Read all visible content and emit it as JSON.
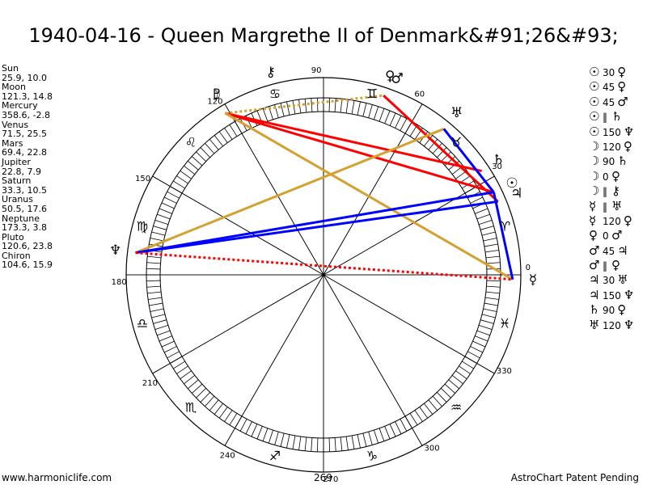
{
  "title": "1940-04-16 - Queen Margrethe II of Denmark&#91;26&#93;",
  "footer": {
    "left": "www.harmoniclife.com",
    "right": "AstroChart Patent Pending",
    "bottom_degree": "269"
  },
  "planets": [
    {
      "name": "Sun",
      "position": "25.9, 10.0"
    },
    {
      "name": "Moon",
      "position": "121.3, 14.8"
    },
    {
      "name": "Mercury",
      "position": "358.6, -2.8"
    },
    {
      "name": "Venus",
      "position": "71.5, 25.5"
    },
    {
      "name": "Mars",
      "position": "69.4, 22.8"
    },
    {
      "name": "Jupiter",
      "position": "22.8, 7.9"
    },
    {
      "name": "Saturn",
      "position": "33.3, 10.5"
    },
    {
      "name": "Uranus",
      "position": "50.5, 17.6"
    },
    {
      "name": "Neptune",
      "position": "173.3, 3.8"
    },
    {
      "name": "Pluto",
      "position": "120.6, 23.8"
    },
    {
      "name": "Chiron",
      "position": "104.6, 15.9"
    }
  ],
  "aspects": [
    {
      "p1": "☉",
      "aspect": "30",
      "p2": "♀"
    },
    {
      "p1": "☉",
      "aspect": "45",
      "p2": "♀"
    },
    {
      "p1": "☉",
      "aspect": "45",
      "p2": "♂"
    },
    {
      "p1": "☉",
      "aspect": "‖",
      "p2": "♄"
    },
    {
      "p1": "☉",
      "aspect": "150",
      "p2": "♆"
    },
    {
      "p1": "☽",
      "aspect": "120",
      "p2": "♀"
    },
    {
      "p1": "☽",
      "aspect": "90",
      "p2": "♄"
    },
    {
      "p1": "☽",
      "aspect": "0",
      "p2": "♀"
    },
    {
      "p1": "☽",
      "aspect": "‖",
      "p2": "⚷"
    },
    {
      "p1": "☿",
      "aspect": "‖",
      "p2": "♅"
    },
    {
      "p1": "☿",
      "aspect": "120",
      "p2": "♀"
    },
    {
      "p1": "♀",
      "aspect": "0",
      "p2": "♂"
    },
    {
      "p1": "♂",
      "aspect": "45",
      "p2": "♃"
    },
    {
      "p1": "♂",
      "aspect": "‖",
      "p2": "♀"
    },
    {
      "p1": "♃",
      "aspect": "30",
      "p2": "♅"
    },
    {
      "p1": "♃",
      "aspect": "150",
      "p2": "♆"
    },
    {
      "p1": "♄",
      "aspect": "90",
      "p2": "♀"
    },
    {
      "p1": "♅",
      "aspect": "120",
      "p2": "♆"
    }
  ],
  "degree_labels": [
    {
      "deg": 0,
      "text": "0"
    },
    {
      "deg": 30,
      "text": "30"
    },
    {
      "deg": 60,
      "text": "60"
    },
    {
      "deg": 90,
      "text": "90"
    },
    {
      "deg": 120,
      "text": "120"
    },
    {
      "deg": 150,
      "text": "150"
    },
    {
      "deg": 180,
      "text": "180"
    },
    {
      "deg": 210,
      "text": "210"
    },
    {
      "deg": 240,
      "text": "240"
    },
    {
      "deg": 270,
      "text": "270"
    },
    {
      "deg": 300,
      "text": "300"
    },
    {
      "deg": 330,
      "text": "330"
    }
  ],
  "signs": [
    {
      "deg": 15,
      "glyph": "♈"
    },
    {
      "deg": 45,
      "glyph": "♉"
    },
    {
      "deg": 75,
      "glyph": "♊"
    },
    {
      "deg": 105,
      "glyph": "♋"
    },
    {
      "deg": 135,
      "glyph": "♌"
    },
    {
      "deg": 165,
      "glyph": "♍"
    },
    {
      "deg": 195,
      "glyph": "♎"
    },
    {
      "deg": 225,
      "glyph": "♏"
    },
    {
      "deg": 255,
      "glyph": "♐"
    },
    {
      "deg": 285,
      "glyph": "♑"
    },
    {
      "deg": 315,
      "glyph": "♒"
    },
    {
      "deg": 345,
      "glyph": "♓"
    }
  ],
  "planet_glyphs": [
    {
      "key": "sun",
      "deg": 25.9,
      "glyph": "☉"
    },
    {
      "key": "moon",
      "deg": 121.3,
      "glyph": "☽"
    },
    {
      "key": "mercury",
      "deg": 358.6,
      "glyph": "☿"
    },
    {
      "key": "venus",
      "deg": 71.5,
      "glyph": "♀"
    },
    {
      "key": "mars",
      "deg": 69.4,
      "glyph": "♂"
    },
    {
      "key": "jupiter",
      "deg": 22.8,
      "glyph": "♃"
    },
    {
      "key": "saturn",
      "deg": 33.3,
      "glyph": "♄"
    },
    {
      "key": "uranus",
      "deg": 50.5,
      "glyph": "♅"
    },
    {
      "key": "neptune",
      "deg": 173.3,
      "glyph": "♆"
    },
    {
      "key": "pluto",
      "deg": 120.6,
      "glyph": "♇"
    },
    {
      "key": "chiron",
      "deg": 104.6,
      "glyph": "⚷"
    }
  ],
  "aspect_lines": [
    {
      "from": "moon",
      "to": "saturn",
      "color": "#ff0000",
      "style": "solid"
    },
    {
      "from": "moon",
      "to": "sun",
      "color": "#ff0000",
      "style": "solid"
    },
    {
      "from": "venus",
      "to": "jupiter",
      "color": "#ff0000",
      "style": "solid"
    },
    {
      "from": "moon",
      "to": "mercury",
      "color": "#d4a030",
      "style": "solid"
    },
    {
      "from": "neptune",
      "to": "uranus",
      "color": "#d4a030",
      "style": "solid"
    },
    {
      "from": "uranus",
      "to": "sun",
      "color": "#0000ff",
      "style": "solid"
    },
    {
      "from": "neptune",
      "to": "sun",
      "color": "#0000ff",
      "style": "solid"
    },
    {
      "from": "neptune",
      "to": "jupiter",
      "color": "#0000ff",
      "style": "solid"
    },
    {
      "from": "sun",
      "to": "mercury",
      "color": "#0000ff",
      "style": "solid"
    },
    {
      "from": "neptune",
      "to": "mercury",
      "color": "#ff0000",
      "style": "dotted"
    },
    {
      "from": "moon",
      "to": "venus",
      "color": "#d4a030",
      "style": "dotted"
    }
  ],
  "house_cusps": [
    0,
    30,
    60,
    90,
    120,
    150,
    180,
    210,
    240,
    270,
    300,
    330
  ]
}
